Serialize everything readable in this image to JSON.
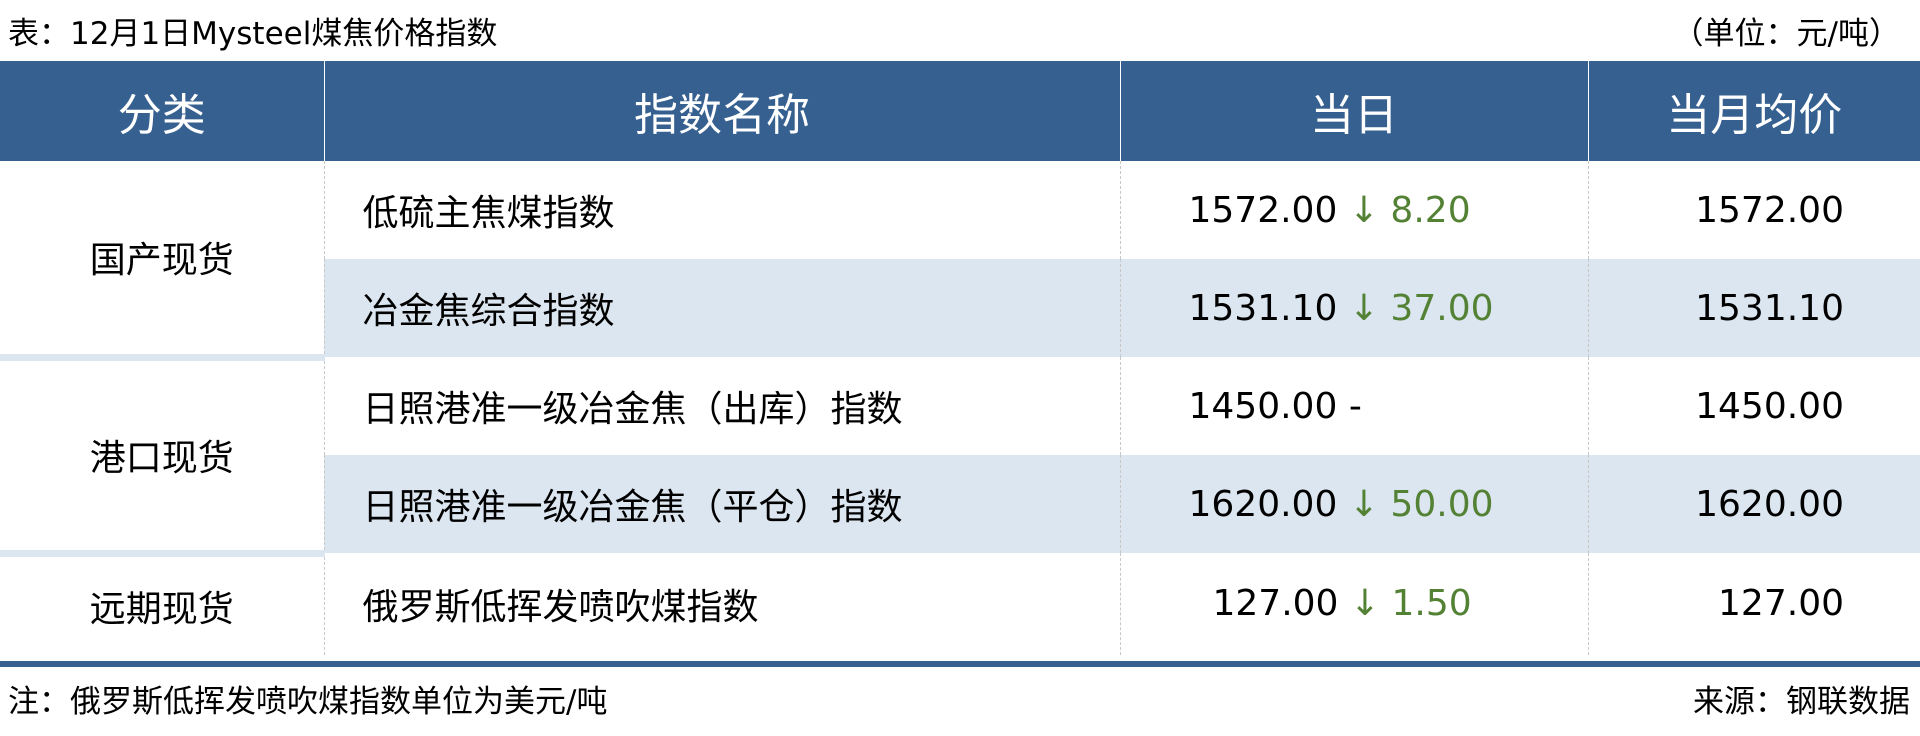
{
  "title": "表：12月1日Mysteel煤焦价格指数",
  "unit": "（单位：元/吨）",
  "colors": {
    "header_bg": "#36608f",
    "stripe_bg": "#dce6f0",
    "down_color": "#548235"
  },
  "headers": [
    "分类",
    "指数名称",
    "当日",
    "当月均价"
  ],
  "groups": [
    {
      "category": "国产现货"
    },
    {
      "category": "港口现货"
    },
    {
      "category": "远期现货"
    }
  ],
  "rows": [
    {
      "name": "低硫主焦煤指数",
      "day": "1572.00",
      "change": "↓ 8.20",
      "avg": "1572.00"
    },
    {
      "name": "冶金焦综合指数",
      "day": "1531.10",
      "change": "↓ 37.00",
      "avg": "1531.10"
    },
    {
      "name": "日照港准一级冶金焦（出库）指数",
      "day": "1450.00",
      "change": "-",
      "avg": "1450.00"
    },
    {
      "name": "日照港准一级冶金焦（平仓）指数",
      "day": "1620.00",
      "change": "↓ 50.00",
      "avg": "1620.00"
    },
    {
      "name": "俄罗斯低挥发喷吹煤指数",
      "day": "127.00",
      "change": "↓ 1.50",
      "avg": "127.00"
    }
  ],
  "footer": {
    "note": "注：俄罗斯低挥发喷吹煤指数单位为美元/吨",
    "source": "来源：钢联数据"
  }
}
